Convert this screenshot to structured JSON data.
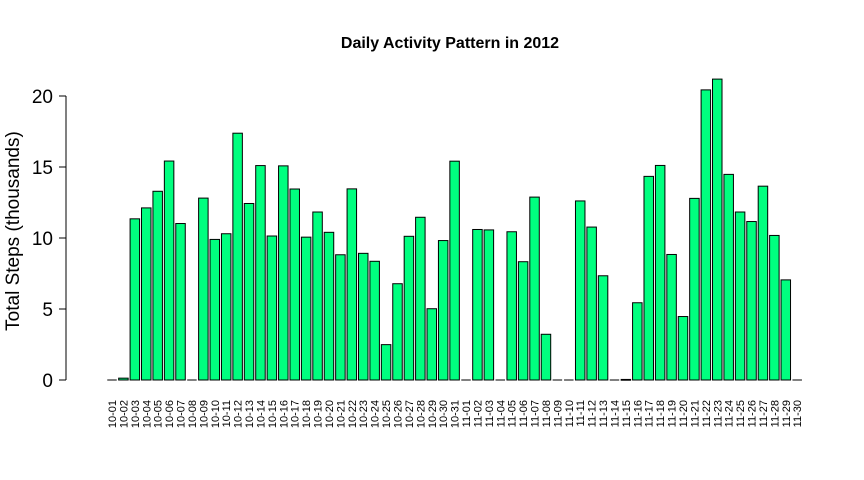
{
  "chart_data": {
    "type": "bar",
    "title": "Daily Activity Pattern in 2012",
    "xlabel": "",
    "ylabel": "Total Steps (thousands)",
    "ylim": [
      0,
      22
    ],
    "yticks": [
      0,
      5,
      10,
      15,
      20
    ],
    "bar_color": "#00ff7f",
    "grid": false,
    "categories": [
      "10-01",
      "10-02",
      "10-03",
      "10-04",
      "10-05",
      "10-06",
      "10-07",
      "10-08",
      "10-09",
      "10-10",
      "10-11",
      "10-12",
      "10-13",
      "10-14",
      "10-15",
      "10-16",
      "10-17",
      "10-18",
      "10-19",
      "10-20",
      "10-21",
      "10-22",
      "10-23",
      "10-24",
      "10-25",
      "10-26",
      "10-27",
      "10-28",
      "10-29",
      "10-30",
      "10-31",
      "11-01",
      "11-02",
      "11-03",
      "11-04",
      "11-05",
      "11-06",
      "11-07",
      "11-08",
      "11-09",
      "11-10",
      "11-11",
      "11-12",
      "11-13",
      "11-14",
      "11-15",
      "11-16",
      "11-17",
      "11-18",
      "11-19",
      "11-20",
      "11-21",
      "11-22",
      "11-23",
      "11-24",
      "11-25",
      "11-26",
      "11-27",
      "11-28",
      "11-29",
      "11-30"
    ],
    "values": [
      0,
      0.13,
      11.35,
      12.12,
      13.29,
      15.42,
      11.02,
      0,
      12.81,
      9.9,
      10.3,
      17.38,
      12.43,
      15.1,
      10.14,
      15.08,
      13.45,
      10.06,
      11.83,
      10.4,
      8.82,
      13.46,
      8.92,
      8.36,
      2.49,
      6.78,
      10.12,
      11.46,
      5.02,
      9.82,
      15.41,
      0,
      10.6,
      10.57,
      0,
      10.44,
      8.33,
      12.88,
      3.22,
      0,
      0,
      12.61,
      10.77,
      7.34,
      0,
      0.04,
      5.44,
      14.34,
      15.11,
      8.84,
      4.47,
      12.79,
      20.43,
      21.19,
      14.48,
      11.83,
      11.16,
      13.65,
      10.18,
      7.05,
      0
    ]
  }
}
